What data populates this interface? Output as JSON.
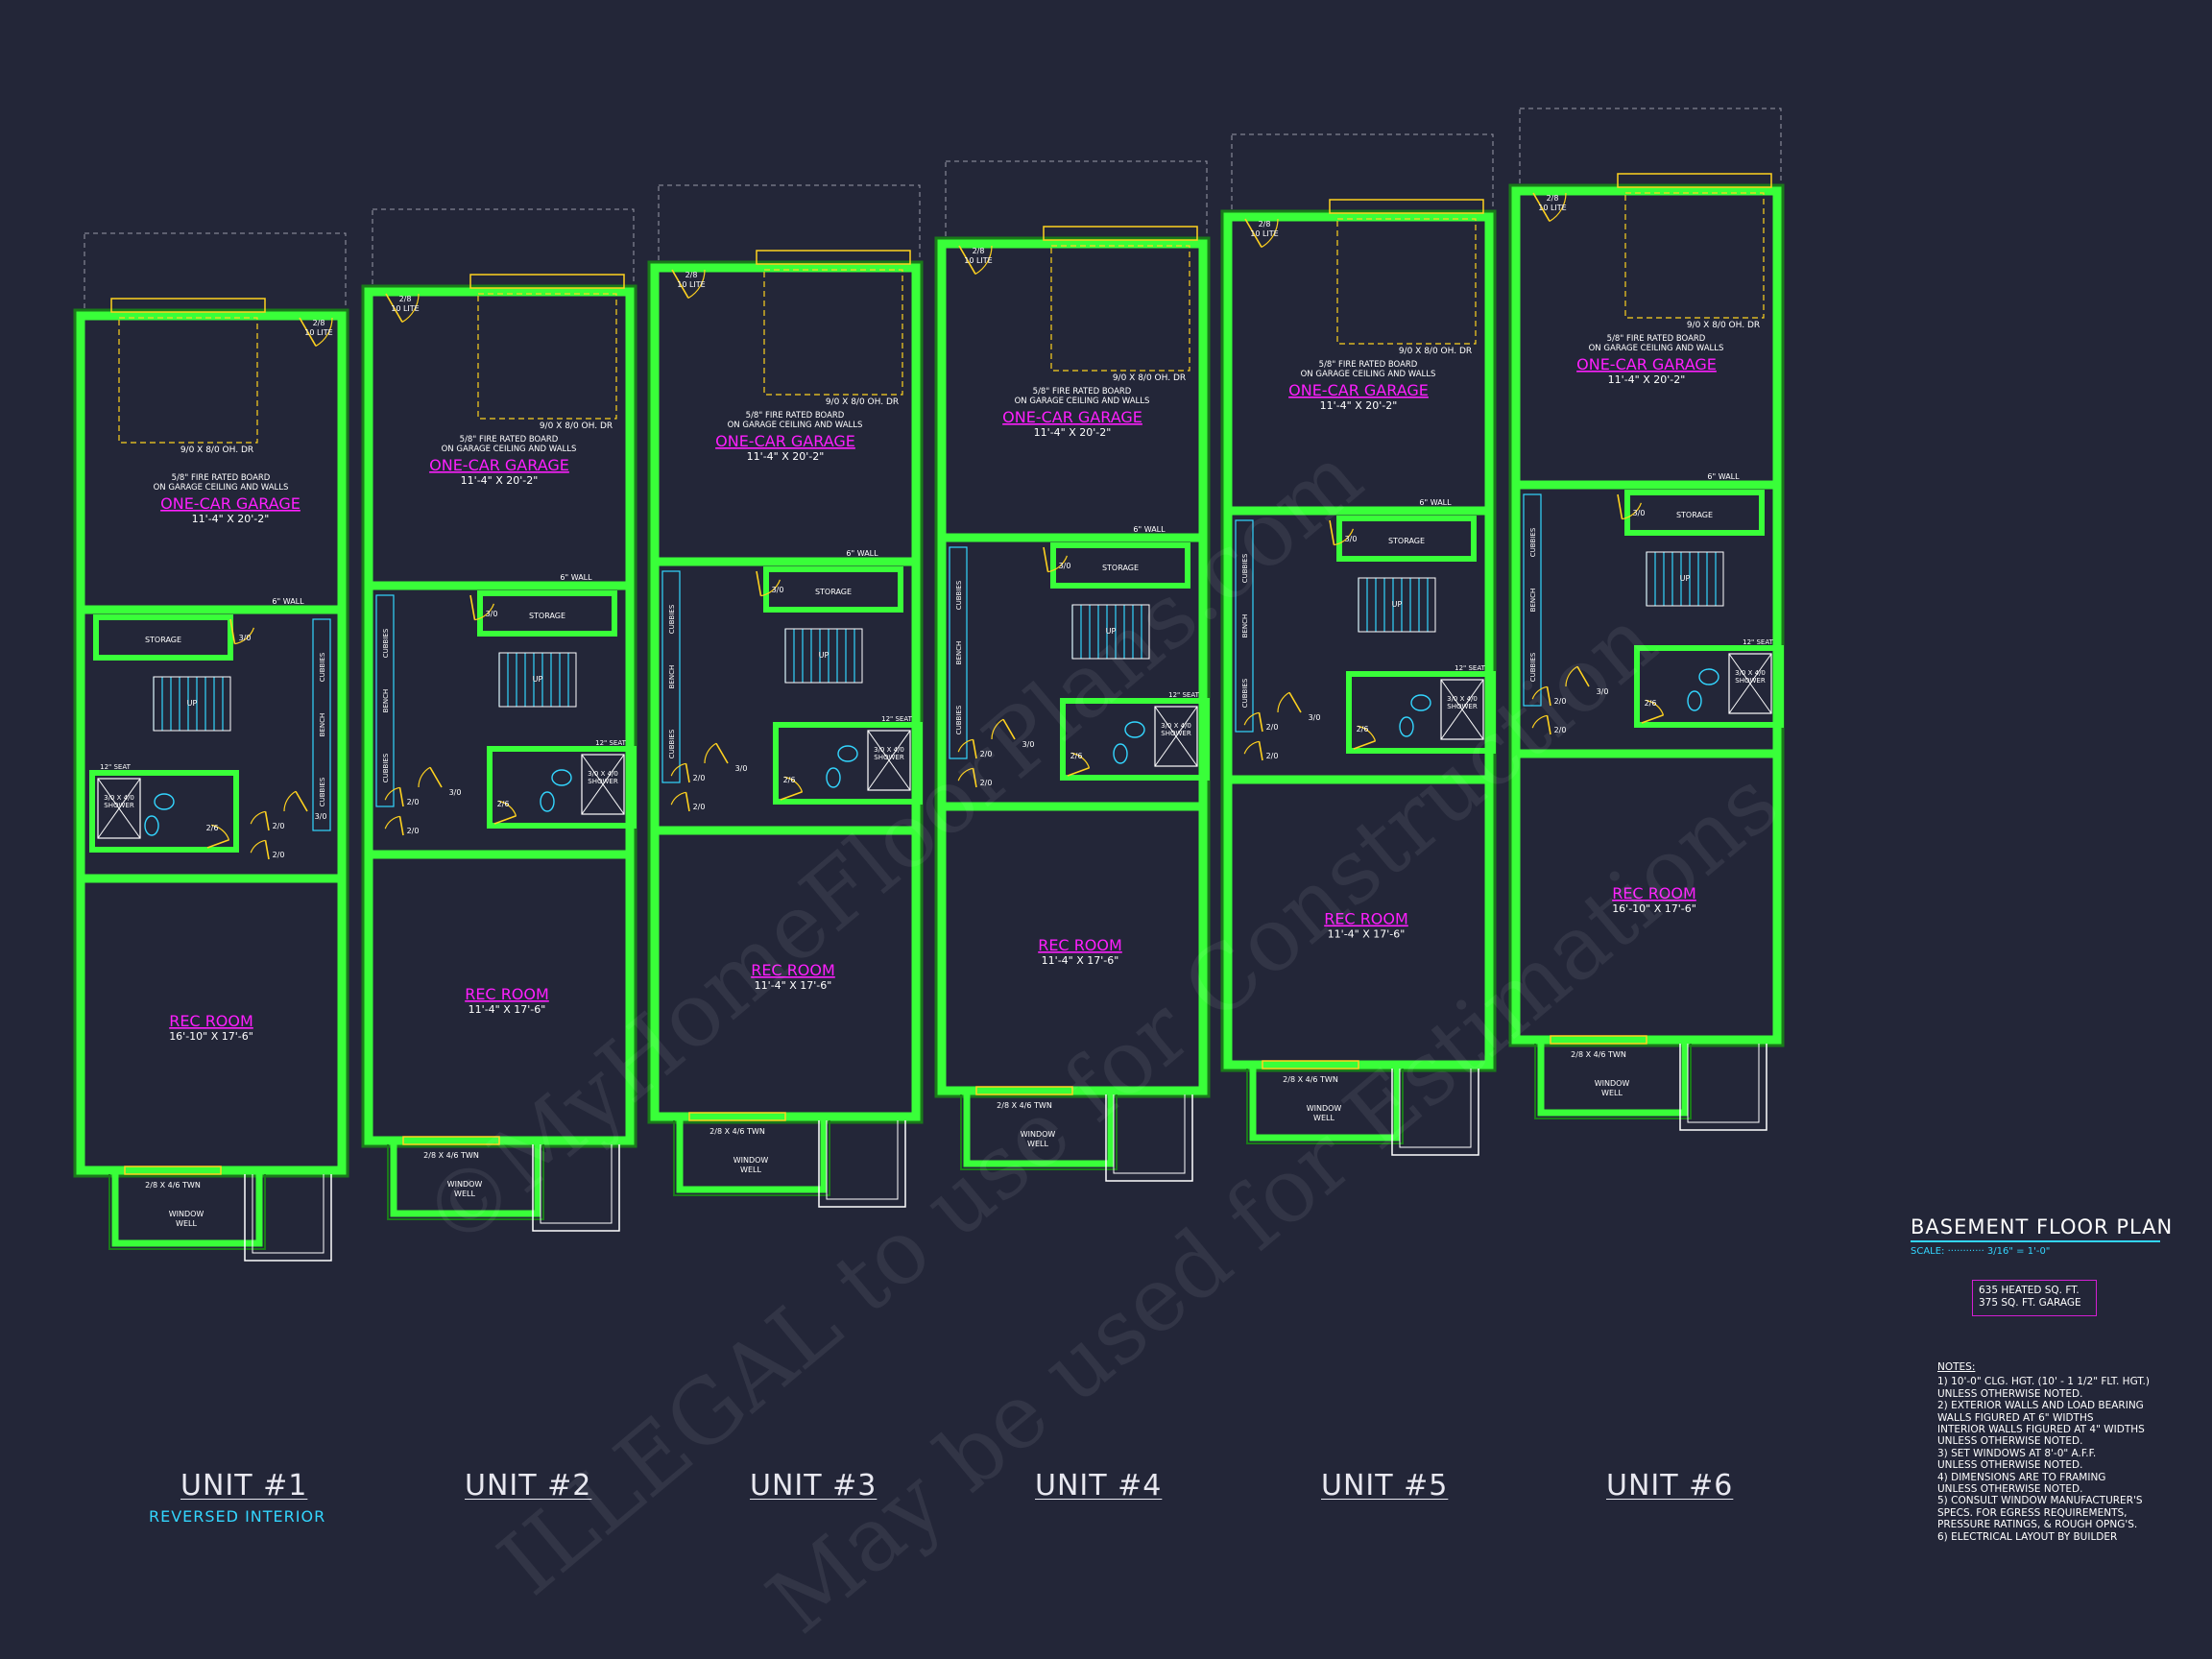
{
  "units": [
    {
      "label": "UNIT #1",
      "sub": "REVERSED INTERIOR"
    },
    {
      "label": "UNIT #2",
      "sub": ""
    },
    {
      "label": "UNIT #3",
      "sub": ""
    },
    {
      "label": "UNIT #4",
      "sub": ""
    },
    {
      "label": "UNIT #5",
      "sub": ""
    },
    {
      "label": "UNIT #6",
      "sub": ""
    }
  ],
  "rooms": {
    "garage_name": "ONE-CAR GARAGE",
    "garage_dims": "11'-4\" X 20'-2\"",
    "rec_name": "REC ROOM",
    "rec_dims_wide": "16'-10\" X 17'-6\"",
    "rec_dims": "11'-4\" X 17'-6\""
  },
  "notes_text": {
    "fire_board_1": "5/8\" FIRE RATED BOARD",
    "fire_board_2": "ON GARAGE CEILING AND WALLS",
    "door_lite_1": "2/8",
    "door_lite_2": "10 LITE",
    "oh_door": "9/0 X 8/0 OH. DR",
    "storage": "STORAGE",
    "wall6": "6\" WALL",
    "seat": "12\" SEAT",
    "shower_1": "3/0 X 4/0",
    "shower_2": "SHOWER",
    "cubbies": "CUBBIES",
    "bench": "BENCH",
    "up": "UP",
    "door30": "3/0",
    "door26": "2/6",
    "door20": "2/0",
    "window": "2/8 X 4/6 TWN",
    "well_1": "WINDOW",
    "well_2": "WELL"
  },
  "title_block": {
    "title": "BASEMENT FLOOR PLAN",
    "scale": "SCALE: ············ 3/16\" = 1'-0\"",
    "area_1": "635 HEATED SQ. FT.",
    "area_2": "375 SQ. FT. GARAGE"
  },
  "notes": {
    "heading": "NOTES:",
    "lines": [
      "1) 10'-0\" CLG. HGT. (10' - 1 1/2\" FLT. HGT.)",
      "    UNLESS OTHERWISE NOTED.",
      "2) EXTERIOR WALLS AND LOAD BEARING",
      "    WALLS FIGURED AT 6\" WIDTHS",
      "    INTERIOR WALLS FIGURED AT 4\" WIDTHS",
      "    UNLESS OTHERWISE NOTED.",
      "3) SET WINDOWS AT 8'-0\" A.F.F.",
      "    UNLESS OTHERWISE NOTED.",
      "4) DIMENSIONS ARE TO FRAMING",
      "    UNLESS OTHERWISE NOTED.",
      "5) CONSULT WINDOW MANUFACTURER'S",
      "    SPECS. FOR EGRESS REQUIREMENTS,",
      "    PRESSURE RATINGS, & ROUGH OPNG'S.",
      "6) ELECTRICAL LAYOUT BY BUILDER"
    ]
  },
  "watermark": {
    "line1": "©MyHomeFloorPlans.com",
    "line2": "ILLEGAL to use for Construction",
    "line3": "May be used for Estimations"
  },
  "colors": {
    "background": "#232638",
    "wall": "#39ff39",
    "wall_outline": "#1a7a1a",
    "room_label": "#ff1fff",
    "door": "#ffd21f",
    "fixture": "#33d6ff",
    "text": "#ffffff"
  }
}
